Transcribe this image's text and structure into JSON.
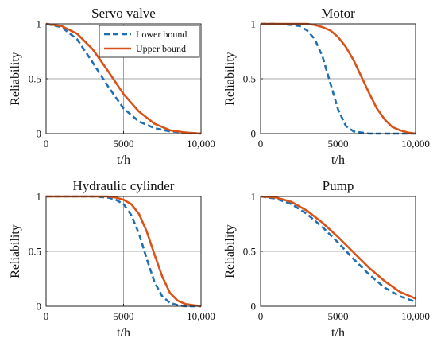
{
  "chart_data": [
    {
      "type": "line",
      "title": "Servo valve",
      "xlabel": "t/h",
      "ylabel": "Reliability",
      "xlim": [
        0,
        10000
      ],
      "ylim": [
        0,
        1
      ],
      "xticks": [
        "0",
        "5000",
        "10,000"
      ],
      "yticks": [
        "0",
        "0.5",
        "1"
      ],
      "grid": "center crosshair",
      "legend": "top-right",
      "series": [
        {
          "name": "Lower bound",
          "style": "dashed",
          "color": "#1f6fb2",
          "x": [
            0,
            1000,
            2000,
            3000,
            4000,
            5000,
            6000,
            7000,
            8000,
            9000,
            10000
          ],
          "y": [
            1.0,
            0.97,
            0.86,
            0.65,
            0.43,
            0.23,
            0.11,
            0.05,
            0.02,
            0.01,
            0.0
          ]
        },
        {
          "name": "Upper bound",
          "style": "solid",
          "color": "#d95319",
          "x": [
            0,
            1000,
            2000,
            3000,
            4000,
            5000,
            6000,
            7000,
            8000,
            9000,
            10000
          ],
          "y": [
            1.0,
            0.98,
            0.91,
            0.77,
            0.57,
            0.36,
            0.2,
            0.09,
            0.03,
            0.01,
            0.0
          ]
        }
      ]
    },
    {
      "type": "line",
      "title": "Motor",
      "xlabel": "t/h",
      "ylabel": "Reliability",
      "xlim": [
        0,
        10000
      ],
      "ylim": [
        0,
        1
      ],
      "xticks": [
        "0",
        "5000",
        "10,000"
      ],
      "yticks": [
        "0",
        "0.5",
        "1"
      ],
      "grid": "center crosshair",
      "series": [
        {
          "name": "Lower bound",
          "style": "dashed",
          "color": "#1f6fb2",
          "x": [
            0,
            1000,
            2000,
            2500,
            3000,
            3500,
            4000,
            4500,
            5000,
            5500,
            6000,
            7000,
            8000,
            10000
          ],
          "y": [
            1.0,
            1.0,
            0.99,
            0.98,
            0.94,
            0.86,
            0.7,
            0.46,
            0.22,
            0.07,
            0.02,
            0.0,
            0.0,
            0.0
          ]
        },
        {
          "name": "Upper bound",
          "style": "solid",
          "color": "#d95319",
          "x": [
            0,
            1000,
            2000,
            3000,
            3500,
            4000,
            4500,
            5000,
            5500,
            6000,
            6500,
            7000,
            7500,
            8000,
            8500,
            9000,
            9500,
            10000
          ],
          "y": [
            1.0,
            1.0,
            1.0,
            1.0,
            0.99,
            0.97,
            0.94,
            0.88,
            0.79,
            0.67,
            0.52,
            0.37,
            0.23,
            0.13,
            0.06,
            0.03,
            0.01,
            0.0
          ]
        }
      ]
    },
    {
      "type": "line",
      "title": "Hydraulic cylinder",
      "xlabel": "t/h",
      "ylabel": "Reliability",
      "xlim": [
        0,
        10000
      ],
      "ylim": [
        0,
        1
      ],
      "xticks": [
        "0",
        "5000",
        "10,000"
      ],
      "yticks": [
        "0",
        "0.5",
        "1"
      ],
      "grid": "center crosshair",
      "series": [
        {
          "name": "Lower bound",
          "style": "dashed",
          "color": "#1f6fb2",
          "x": [
            0,
            1000,
            2000,
            3000,
            4000,
            4500,
            5000,
            5500,
            6000,
            6500,
            7000,
            7500,
            8000,
            8500,
            9000,
            10000
          ],
          "y": [
            1.0,
            1.0,
            1.0,
            1.0,
            0.99,
            0.97,
            0.93,
            0.83,
            0.66,
            0.43,
            0.22,
            0.09,
            0.03,
            0.01,
            0.0,
            0.0
          ]
        },
        {
          "name": "Upper bound",
          "style": "solid",
          "color": "#d95319",
          "x": [
            0,
            1000,
            2000,
            3000,
            4000,
            4500,
            5000,
            5500,
            6000,
            6500,
            7000,
            7500,
            8000,
            8500,
            9000,
            9500,
            10000
          ],
          "y": [
            1.0,
            1.0,
            1.0,
            1.0,
            1.0,
            0.99,
            0.97,
            0.93,
            0.84,
            0.68,
            0.47,
            0.27,
            0.12,
            0.05,
            0.02,
            0.01,
            0.0
          ]
        }
      ]
    },
    {
      "type": "line",
      "title": "Pump",
      "xlabel": "t/h",
      "ylabel": "Reliability",
      "xlim": [
        0,
        10000
      ],
      "ylim": [
        0,
        1
      ],
      "xticks": [
        "0",
        "5000",
        "10,000"
      ],
      "yticks": [
        "0",
        "0.5",
        "1"
      ],
      "grid": "center crosshair",
      "series": [
        {
          "name": "Lower bound",
          "style": "dashed",
          "color": "#1f6fb2",
          "x": [
            0,
            1000,
            2000,
            3000,
            4000,
            5000,
            6000,
            7000,
            8000,
            9000,
            10000
          ],
          "y": [
            1.0,
            0.98,
            0.93,
            0.84,
            0.72,
            0.58,
            0.43,
            0.29,
            0.17,
            0.09,
            0.04
          ]
        },
        {
          "name": "Upper bound",
          "style": "solid",
          "color": "#d95319",
          "x": [
            0,
            1000,
            2000,
            3000,
            4000,
            5000,
            6000,
            7000,
            8000,
            9000,
            10000
          ],
          "y": [
            1.0,
            0.99,
            0.95,
            0.87,
            0.76,
            0.63,
            0.49,
            0.35,
            0.23,
            0.13,
            0.07
          ]
        }
      ]
    }
  ]
}
